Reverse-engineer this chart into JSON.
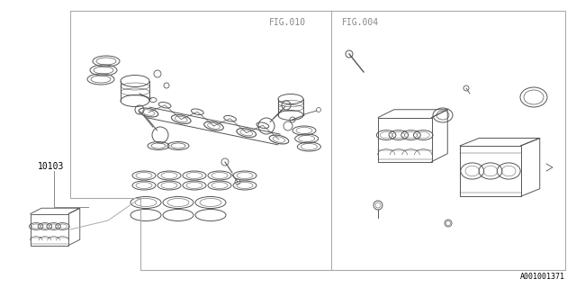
{
  "bg_color": "#ffffff",
  "border_color": "#888888",
  "text_color": "#000000",
  "fig_label_010": "FIG.010",
  "fig_label_004": "FIG.004",
  "part_number": "10103",
  "diagram_id": "A001001371",
  "lc": "#555555",
  "lw_thin": 0.5,
  "lw_med": 0.8,
  "lw_thick": 1.0
}
